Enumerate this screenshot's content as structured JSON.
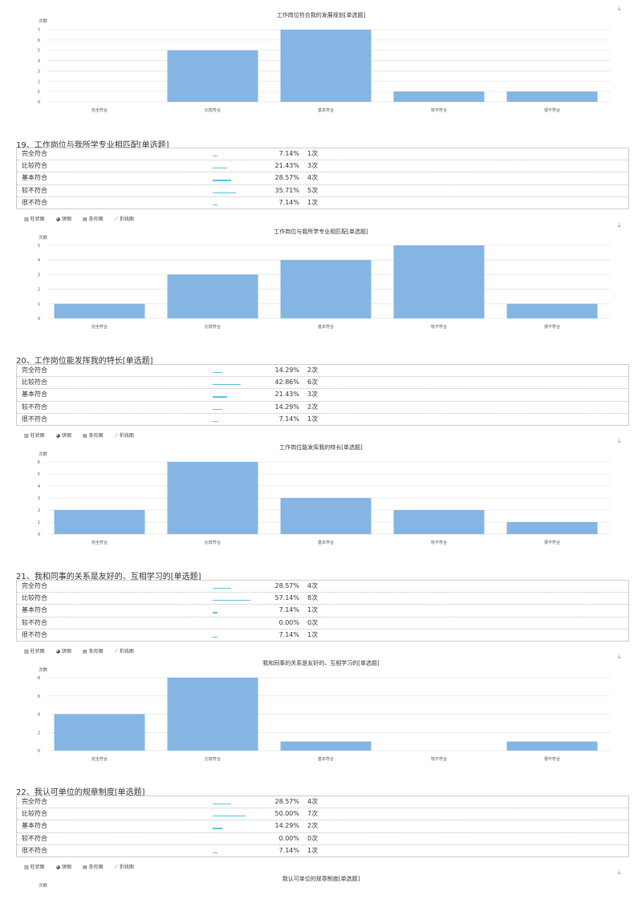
{
  "options": [
    "完全符合",
    "比较符合",
    "基本符合",
    "较不符合",
    "很不符合"
  ],
  "unit_label": "次数",
  "bar_color": "#85b5e2",
  "tabs": [
    {
      "icon": "bar-chart-icon",
      "glyph": "▥",
      "label": "柱状图"
    },
    {
      "icon": "pie-chart-icon",
      "glyph": "◕",
      "label": "饼图"
    },
    {
      "icon": "hbar-chart-icon",
      "glyph": "▤",
      "label": "条形图"
    },
    {
      "icon": "line-chart-icon",
      "glyph": "⟋",
      "label": "折线图"
    }
  ],
  "download_glyph": "⤓",
  "questions": [
    {
      "title": "",
      "chart_title": "工作岗位符合我的发展规划[单选题]",
      "rows": []
    },
    {
      "title": "19、工作岗位与我所学专业相匹配[单选题]",
      "chart_title": "工作岗位与我所学专业相匹配[单选题]",
      "rows": [
        {
          "pct": "7.14%",
          "cnt": "1次"
        },
        {
          "pct": "21.43%",
          "cnt": "3次"
        },
        {
          "pct": "28.57%",
          "cnt": "4次"
        },
        {
          "pct": "35.71%",
          "cnt": "5次"
        },
        {
          "pct": "7.14%",
          "cnt": "1次"
        }
      ]
    },
    {
      "title": "20、工作岗位能发挥我的特长[单选题]",
      "chart_title": "工作岗位能发挥我的特长[单选题]",
      "rows": [
        {
          "pct": "14.29%",
          "cnt": "2次"
        },
        {
          "pct": "42.86%",
          "cnt": "6次"
        },
        {
          "pct": "21.43%",
          "cnt": "3次"
        },
        {
          "pct": "14.29%",
          "cnt": "2次"
        },
        {
          "pct": "7.14%",
          "cnt": "1次"
        }
      ]
    },
    {
      "title": "21、我和同事的关系是友好的、互相学习的[单选题]",
      "chart_title": "我和同事的关系是友好的、互相学习的[单选题]",
      "rows": [
        {
          "pct": "28.57%",
          "cnt": "4次"
        },
        {
          "pct": "57.14%",
          "cnt": "8次"
        },
        {
          "pct": "7.14%",
          "cnt": "1次"
        },
        {
          "pct": "0.00%",
          "cnt": "0次"
        },
        {
          "pct": "7.14%",
          "cnt": "1次"
        }
      ]
    },
    {
      "title": "22、我认可单位的规章制度[单选题]",
      "chart_title": "我认可单位的规章制度[单选题]",
      "rows": [
        {
          "pct": "28.57%",
          "cnt": "4次"
        },
        {
          "pct": "50.00%",
          "cnt": "7次"
        },
        {
          "pct": "14.29%",
          "cnt": "2次"
        },
        {
          "pct": "0.00%",
          "cnt": "0次"
        },
        {
          "pct": "7.14%",
          "cnt": "1次"
        }
      ]
    }
  ],
  "chart_data": [
    {
      "type": "bar",
      "title": "工作岗位符合我的发展规划[单选题]",
      "ylabel": "次数",
      "categories": [
        "完全符合",
        "比较符合",
        "基本符合",
        "较不符合",
        "很不符合"
      ],
      "values": [
        0,
        5,
        7,
        1,
        1
      ],
      "ylim": [
        0,
        7
      ],
      "yticks": [
        0,
        1,
        2,
        3,
        4,
        5,
        6,
        7
      ]
    },
    {
      "type": "bar",
      "title": "工作岗位与我所学专业相匹配[单选题]",
      "ylabel": "次数",
      "categories": [
        "完全符合",
        "比较符合",
        "基本符合",
        "较不符合",
        "很不符合"
      ],
      "values": [
        1,
        3,
        4,
        5,
        1
      ],
      "ylim": [
        0,
        5
      ],
      "yticks": [
        0,
        1,
        2,
        3,
        4,
        5
      ]
    },
    {
      "type": "bar",
      "title": "工作岗位能发挥我的特长[单选题]",
      "ylabel": "次数",
      "categories": [
        "完全符合",
        "比较符合",
        "基本符合",
        "较不符合",
        "很不符合"
      ],
      "values": [
        2,
        6,
        3,
        2,
        1
      ],
      "ylim": [
        0,
        6
      ],
      "yticks": [
        0,
        1,
        2,
        3,
        4,
        5,
        6
      ]
    },
    {
      "type": "bar",
      "title": "我和同事的关系是友好的、互相学习的[单选题]",
      "ylabel": "次数",
      "categories": [
        "完全符合",
        "比较符合",
        "基本符合",
        "较不符合",
        "很不符合"
      ],
      "values": [
        4,
        8,
        1,
        0,
        1
      ],
      "ylim": [
        0,
        8
      ],
      "yticks": [
        0,
        2,
        4,
        6,
        8
      ]
    }
  ]
}
